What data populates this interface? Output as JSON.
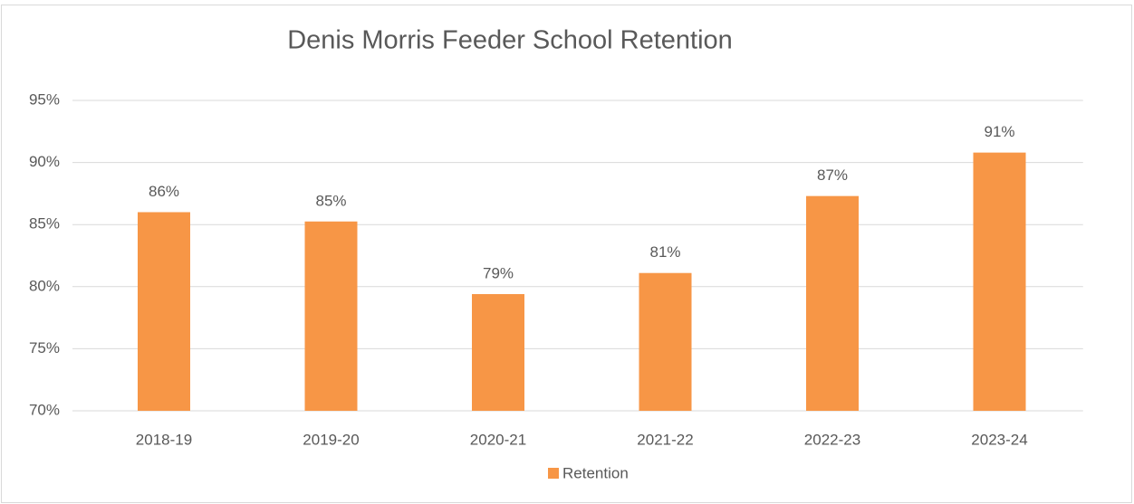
{
  "chart_data": {
    "type": "bar",
    "title": "Denis Morris Feeder School Retention",
    "categories": [
      "2018-19",
      "2019-20",
      "2020-21",
      "2021-22",
      "2022-23",
      "2023-24"
    ],
    "series": [
      {
        "name": "Retention",
        "color": "#f79646",
        "values": [
          86.0,
          85.25,
          79.4,
          81.1,
          87.3,
          90.8
        ],
        "value_labels": [
          "86%",
          "85%",
          "79%",
          "81%",
          "87%",
          "91%"
        ]
      }
    ],
    "ylim": [
      70,
      95
    ],
    "yticks": [
      {
        "value": 70,
        "label": "70%"
      },
      {
        "value": 75,
        "label": "75%"
      },
      {
        "value": 80,
        "label": "80%"
      },
      {
        "value": 85,
        "label": "85%"
      },
      {
        "value": 90,
        "label": "90%"
      },
      {
        "value": 95,
        "label": "95%"
      }
    ],
    "grid": true,
    "legend": "bottom"
  }
}
